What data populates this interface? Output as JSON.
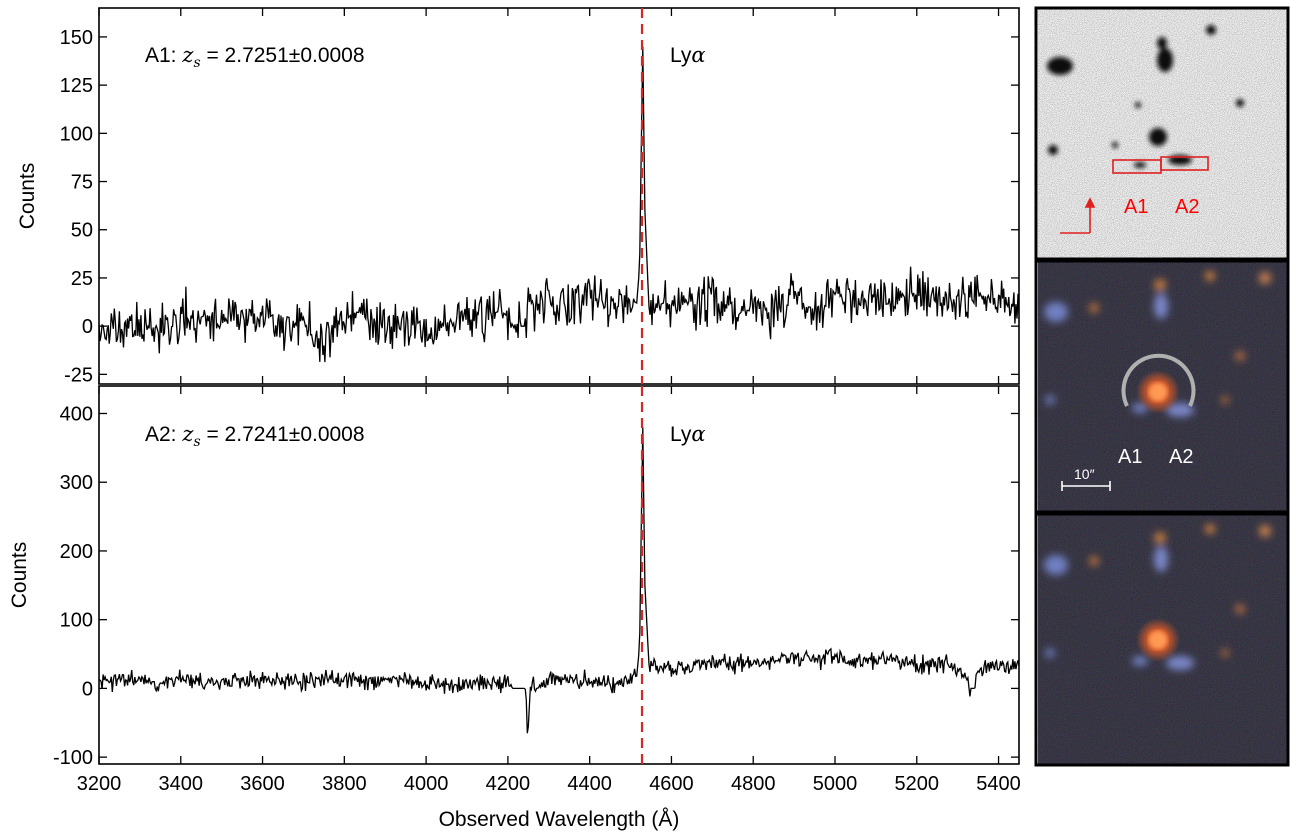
{
  "chart_data": [
    {
      "type": "line",
      "panel": "top",
      "title": "",
      "xlabel": "",
      "ylabel": "Counts",
      "xlim": [
        3200,
        5450
      ],
      "ylim": [
        -30,
        165
      ],
      "yticks": [
        -25,
        0,
        25,
        50,
        75,
        100,
        125,
        150
      ],
      "ytick_labels": [
        "-25",
        "0",
        "25",
        "50",
        "75",
        "100",
        "125",
        "150"
      ],
      "annotation": "A1: zₛ = 2.7251±0.0008",
      "annotation_parts": {
        "prefix": "A1: ",
        "var": "z",
        "sub": "s",
        "rest": " = 2.7251±0.0008"
      },
      "line_label": {
        "text": "Lyα",
        "prefix": "Ly",
        "greek": "α"
      },
      "reference_line": {
        "x": 4528,
        "color": "#d62728",
        "style": "dashed"
      },
      "series": [
        {
          "color": "#000000",
          "x": [
            3200,
            3250,
            3300,
            3350,
            3400,
            3450,
            3500,
            3550,
            3600,
            3650,
            3700,
            3750,
            3800,
            3850,
            3900,
            3950,
            4000,
            4050,
            4100,
            4150,
            4200,
            4230,
            4240,
            4250,
            4300,
            4350,
            4400,
            4450,
            4500,
            4515,
            4522,
            4526,
            4530,
            4535,
            4545,
            4560,
            4600,
            4650,
            4700,
            4750,
            4800,
            4850,
            4900,
            4950,
            5000,
            5050,
            5100,
            5150,
            5200,
            5250,
            5300,
            5350,
            5400,
            5450
          ],
          "y": [
            -3,
            -2,
            0,
            -1,
            3,
            5,
            2,
            4,
            6,
            -3,
            3,
            -8,
            4,
            6,
            0,
            2,
            -4,
            1,
            4,
            9,
            3,
            0,
            0,
            12,
            14,
            10,
            16,
            8,
            14,
            12,
            30,
            90,
            145,
            60,
            10,
            12,
            8,
            12,
            15,
            7,
            14,
            6,
            17,
            5,
            16,
            12,
            15,
            13,
            17,
            15,
            13,
            13,
            15,
            8
          ],
          "amplitude": 9
        }
      ]
    },
    {
      "type": "line",
      "panel": "bottom",
      "title": "",
      "xlabel": "Observed Wavelength (Å)",
      "ylabel": "Counts",
      "xlim": [
        3200,
        5450
      ],
      "ylim": [
        -110,
        440
      ],
      "yticks": [
        -100,
        0,
        100,
        200,
        300,
        400
      ],
      "ytick_labels": [
        "-100",
        "0",
        "100",
        "200",
        "300",
        "400"
      ],
      "xticks": [
        3200,
        3400,
        3600,
        3800,
        4000,
        4200,
        4400,
        4600,
        4800,
        5000,
        5200,
        5400
      ],
      "xtick_labels": [
        "3200",
        "3400",
        "3600",
        "3800",
        "4000",
        "4200",
        "4400",
        "4600",
        "4800",
        "5000",
        "5200",
        "5400"
      ],
      "annotation": "A2: zₛ = 2.7241±0.0008",
      "annotation_parts": {
        "prefix": "A2: ",
        "var": "z",
        "sub": "s",
        "rest": " = 2.7241±0.0008"
      },
      "line_label": {
        "text": "Lyα",
        "prefix": "Ly",
        "greek": "α"
      },
      "reference_line": {
        "x": 4528,
        "color": "#d62728",
        "style": "dashed"
      },
      "series": [
        {
          "color": "#000000",
          "x": [
            3200,
            3250,
            3300,
            3350,
            3400,
            3450,
            3500,
            3550,
            3600,
            3650,
            3700,
            3750,
            3800,
            3850,
            3900,
            3950,
            4000,
            4050,
            4100,
            4150,
            4200,
            4210,
            4215,
            4240,
            4245,
            4248,
            4252,
            4256,
            4300,
            4350,
            4400,
            4450,
            4500,
            4515,
            4522,
            4526,
            4530,
            4535,
            4545,
            4560,
            4600,
            4650,
            4700,
            4750,
            4800,
            4850,
            4900,
            4950,
            5000,
            5050,
            5100,
            5150,
            5200,
            5250,
            5300,
            5330,
            5340,
            5350,
            5400,
            5450
          ],
          "y": [
            8,
            12,
            13,
            10,
            12,
            10,
            9,
            13,
            15,
            12,
            10,
            12,
            14,
            10,
            12,
            10,
            8,
            6,
            8,
            9,
            8,
            0,
            0,
            0,
            -20,
            -75,
            -20,
            2,
            15,
            12,
            10,
            5,
            15,
            18,
            60,
            230,
            380,
            150,
            35,
            30,
            25,
            32,
            38,
            36,
            35,
            40,
            45,
            42,
            45,
            40,
            38,
            40,
            35,
            38,
            30,
            0,
            0,
            30,
            32,
            35
          ],
          "amplitude": 10
        }
      ]
    }
  ],
  "images": {
    "top": {
      "labels": [
        "A1",
        "A2"
      ],
      "label_color": "#ff0000",
      "box_color": "#e02020"
    },
    "middle": {
      "labels": [
        "A1",
        "A2"
      ],
      "label_color": "#ffffff",
      "scale_bar": "10″",
      "arc_color": "#b0b0b0"
    },
    "bottom": {}
  }
}
